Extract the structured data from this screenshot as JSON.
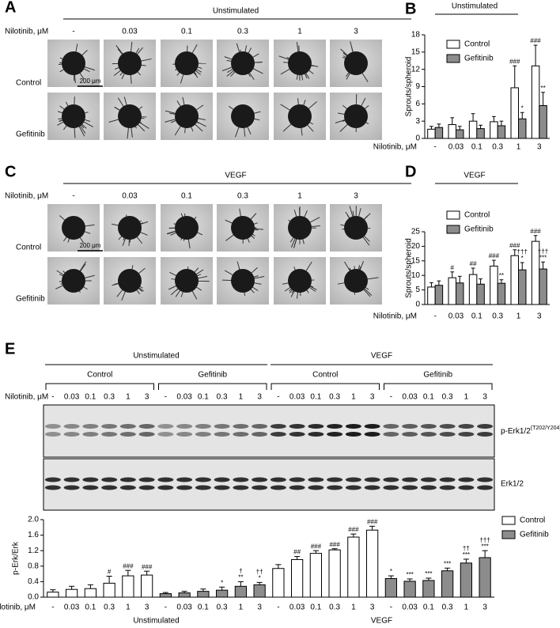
{
  "panels": {
    "A": {
      "letter": "A",
      "condition": "Unstimulated",
      "dose_label": "Nilotinib, μM",
      "doses": [
        "-",
        "0.03",
        "0.1",
        "0.3",
        "1",
        "3"
      ],
      "rows": [
        "Control",
        "Gefitinib"
      ],
      "scale_bar": "200 μm"
    },
    "C": {
      "letter": "C",
      "condition": "VEGF",
      "dose_label": "Nilotinib, μM",
      "doses": [
        "-",
        "0.03",
        "0.1",
        "0.3",
        "1",
        "3"
      ],
      "rows": [
        "Control",
        "Gefitinib"
      ],
      "scale_bar": "200 μm"
    },
    "E": {
      "letter": "E",
      "groups": [
        "Unstimulated",
        "VEGF"
      ],
      "subgroups": [
        "Control",
        "Gefitinib",
        "Control",
        "Gefitinib"
      ],
      "dose_label": "Nilotinib, μM",
      "doses": [
        "-",
        "0.03",
        "0.1",
        "0.3",
        "1",
        "3"
      ],
      "bands": [
        "p-Erk1/2",
        "Erk1/2"
      ],
      "band_superscript": "(T202/Y204)"
    }
  },
  "chart_data": [
    {
      "type": "bar",
      "letter": "B",
      "title": "Unstimulated",
      "y_label": "Sprouts/spheroid",
      "x_label": "Nilotinib, μM",
      "categories": [
        "-",
        "0.03",
        "0.1",
        "0.3",
        "1",
        "3"
      ],
      "series": [
        {
          "name": "Control",
          "color": "#ffffff",
          "values": [
            1.6,
            2.4,
            3.0,
            2.9,
            8.8,
            12.6
          ],
          "errors": [
            0.5,
            1.2,
            1.3,
            0.9,
            3.8,
            3.6
          ],
          "annotations": [
            null,
            null,
            null,
            null,
            [
              "###"
            ],
            [
              "###"
            ]
          ]
        },
        {
          "name": "Gefitinib",
          "color": "#8c8c8c",
          "values": [
            1.9,
            1.5,
            1.7,
            2.2,
            3.4,
            5.7
          ],
          "errors": [
            0.6,
            0.6,
            0.6,
            0.8,
            1.1,
            2.3
          ],
          "annotations": [
            null,
            null,
            null,
            null,
            [
              "*"
            ],
            [
              "**"
            ]
          ]
        }
      ],
      "ylim": [
        0,
        18
      ],
      "yticks": [
        0,
        3,
        6,
        9,
        12,
        15,
        18
      ]
    },
    {
      "type": "bar",
      "letter": "D",
      "title": "VEGF",
      "y_label": "Sprouts/spheroid",
      "x_label": "Nilotinib, μM",
      "categories": [
        "-",
        "0.03",
        "0.1",
        "0.3",
        "1",
        "3"
      ],
      "series": [
        {
          "name": "Control",
          "color": "#ffffff",
          "values": [
            6.0,
            9.2,
            10.3,
            13.2,
            16.8,
            21.7
          ],
          "errors": [
            1.5,
            2.0,
            2.2,
            2.0,
            2.0,
            2.0
          ],
          "annotations": [
            null,
            [
              "#"
            ],
            [
              "##"
            ],
            [
              "###"
            ],
            [
              "###"
            ],
            [
              "###"
            ]
          ]
        },
        {
          "name": "Gefitinib",
          "color": "#8c8c8c",
          "values": [
            6.6,
            7.4,
            7.0,
            7.3,
            11.9,
            12.2
          ],
          "errors": [
            1.5,
            2.3,
            1.8,
            1.2,
            2.5,
            2.4
          ],
          "annotations": [
            null,
            null,
            null,
            [
              "**"
            ],
            [
              "†††",
              "*"
            ],
            [
              "†††",
              "***"
            ]
          ]
        }
      ],
      "ylim": [
        0,
        25
      ],
      "yticks": [
        0,
        5,
        10,
        15,
        20,
        25
      ]
    },
    {
      "type": "bar",
      "y_label": "p-Erk/Erk",
      "x_label": "Nilotinib, μM",
      "groups": [
        "Unstimulated",
        "VEGF"
      ],
      "categories": [
        "-",
        "0.03",
        "0.1",
        "0.3",
        "1",
        "3",
        "-",
        "0.03",
        "0.1",
        "0.3",
        "1",
        "3",
        "-",
        "0.03",
        "0.1",
        "0.3",
        "1",
        "3",
        "-",
        "0.03",
        "0.1",
        "0.3",
        "1",
        "3"
      ],
      "series": [
        {
          "name": "Control",
          "color": "#ffffff",
          "values": [
            0.13,
            0.2,
            0.22,
            0.36,
            0.55,
            0.57,
            null,
            null,
            null,
            null,
            null,
            null,
            0.74,
            0.97,
            1.13,
            1.22,
            1.55,
            1.73,
            null,
            null,
            null,
            null,
            null,
            null
          ],
          "errors": [
            0.06,
            0.08,
            0.1,
            0.18,
            0.14,
            0.1,
            null,
            null,
            null,
            null,
            null,
            null,
            0.1,
            0.08,
            0.07,
            0.03,
            0.08,
            0.1,
            null,
            null,
            null,
            null,
            null,
            null
          ],
          "annotations": [
            null,
            null,
            null,
            [
              "#"
            ],
            [
              "###"
            ],
            [
              "###"
            ],
            null,
            null,
            null,
            null,
            null,
            null,
            null,
            [
              "##"
            ],
            [
              "###"
            ],
            [
              "###"
            ],
            [
              "###"
            ],
            [
              "###"
            ],
            null,
            null,
            null,
            null,
            null,
            null
          ]
        },
        {
          "name": "Gefitinib",
          "color": "#8c8c8c",
          "values": [
            null,
            null,
            null,
            null,
            null,
            null,
            0.09,
            0.11,
            0.15,
            0.18,
            0.28,
            0.32,
            null,
            null,
            null,
            null,
            null,
            null,
            0.48,
            0.41,
            0.43,
            0.68,
            0.88,
            1.02
          ],
          "errors": [
            null,
            null,
            null,
            null,
            null,
            null,
            0.03,
            0.04,
            0.06,
            0.08,
            0.12,
            0.06,
            null,
            null,
            null,
            null,
            null,
            null,
            0.07,
            0.06,
            0.06,
            0.07,
            0.1,
            0.18
          ],
          "annotations": [
            null,
            null,
            null,
            null,
            null,
            null,
            null,
            null,
            null,
            [
              "*"
            ],
            [
              "†",
              "**"
            ],
            [
              "††",
              "*"
            ],
            null,
            null,
            null,
            null,
            null,
            null,
            [
              "*"
            ],
            [
              "***"
            ],
            [
              "***"
            ],
            [
              "***"
            ],
            [
              "††",
              "***"
            ],
            [
              "†††",
              "***"
            ]
          ]
        }
      ],
      "ylim": [
        0,
        2.0
      ],
      "yticks": [
        {
          "value": 0,
          "label": "0.0"
        },
        0.4,
        0.8,
        1.2,
        1.6,
        {
          "value": 2.0,
          "label": "2.0"
        }
      ]
    }
  ]
}
